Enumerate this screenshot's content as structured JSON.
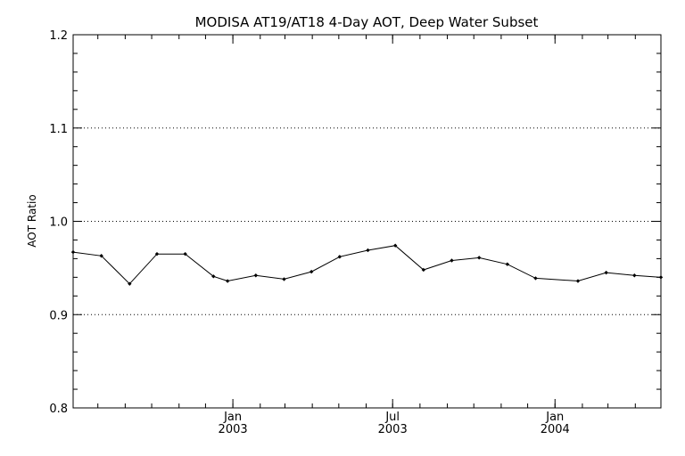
{
  "chart_data": {
    "type": "line",
    "title": "MODISA AT19/AT18 4-Day AOT, Deep Water Subset",
    "xlabel": "",
    "ylabel": "AOT Ratio",
    "ylim": [
      0.8,
      1.2
    ],
    "xlim": [
      "2002-07-04",
      "2004-04-30"
    ],
    "y_ticks": [
      "0.8",
      "0.9",
      "1.0",
      "1.1",
      "1.2"
    ],
    "x_ticks": [
      {
        "date": "2003-01-01",
        "month": "Jan",
        "year": "2003"
      },
      {
        "date": "2003-07-01",
        "month": "Jul",
        "year": "2003"
      },
      {
        "date": "2004-01-01",
        "month": "Jan",
        "year": "2004"
      }
    ],
    "grid": {
      "y_major": true,
      "style": "dotted"
    },
    "series": [
      {
        "x": [
          "2002-07-04",
          "2002-08-05",
          "2002-09-06",
          "2002-10-07",
          "2002-11-08",
          "2002-12-10",
          "2002-12-26",
          "2003-01-27",
          "2003-02-28",
          "2003-03-31",
          "2003-05-02",
          "2003-06-03",
          "2003-07-04",
          "2003-08-05",
          "2003-09-06",
          "2003-10-07",
          "2003-11-08",
          "2003-12-10",
          "2004-01-27",
          "2004-02-28",
          "2004-03-31",
          "2004-04-30"
        ],
        "y": [
          0.967,
          0.963,
          0.933,
          0.965,
          0.965,
          0.941,
          0.936,
          0.942,
          0.938,
          0.946,
          0.962,
          0.969,
          0.974,
          0.948,
          0.958,
          0.961,
          0.954,
          0.939,
          0.936,
          0.945,
          0.942,
          0.94
        ]
      }
    ]
  }
}
